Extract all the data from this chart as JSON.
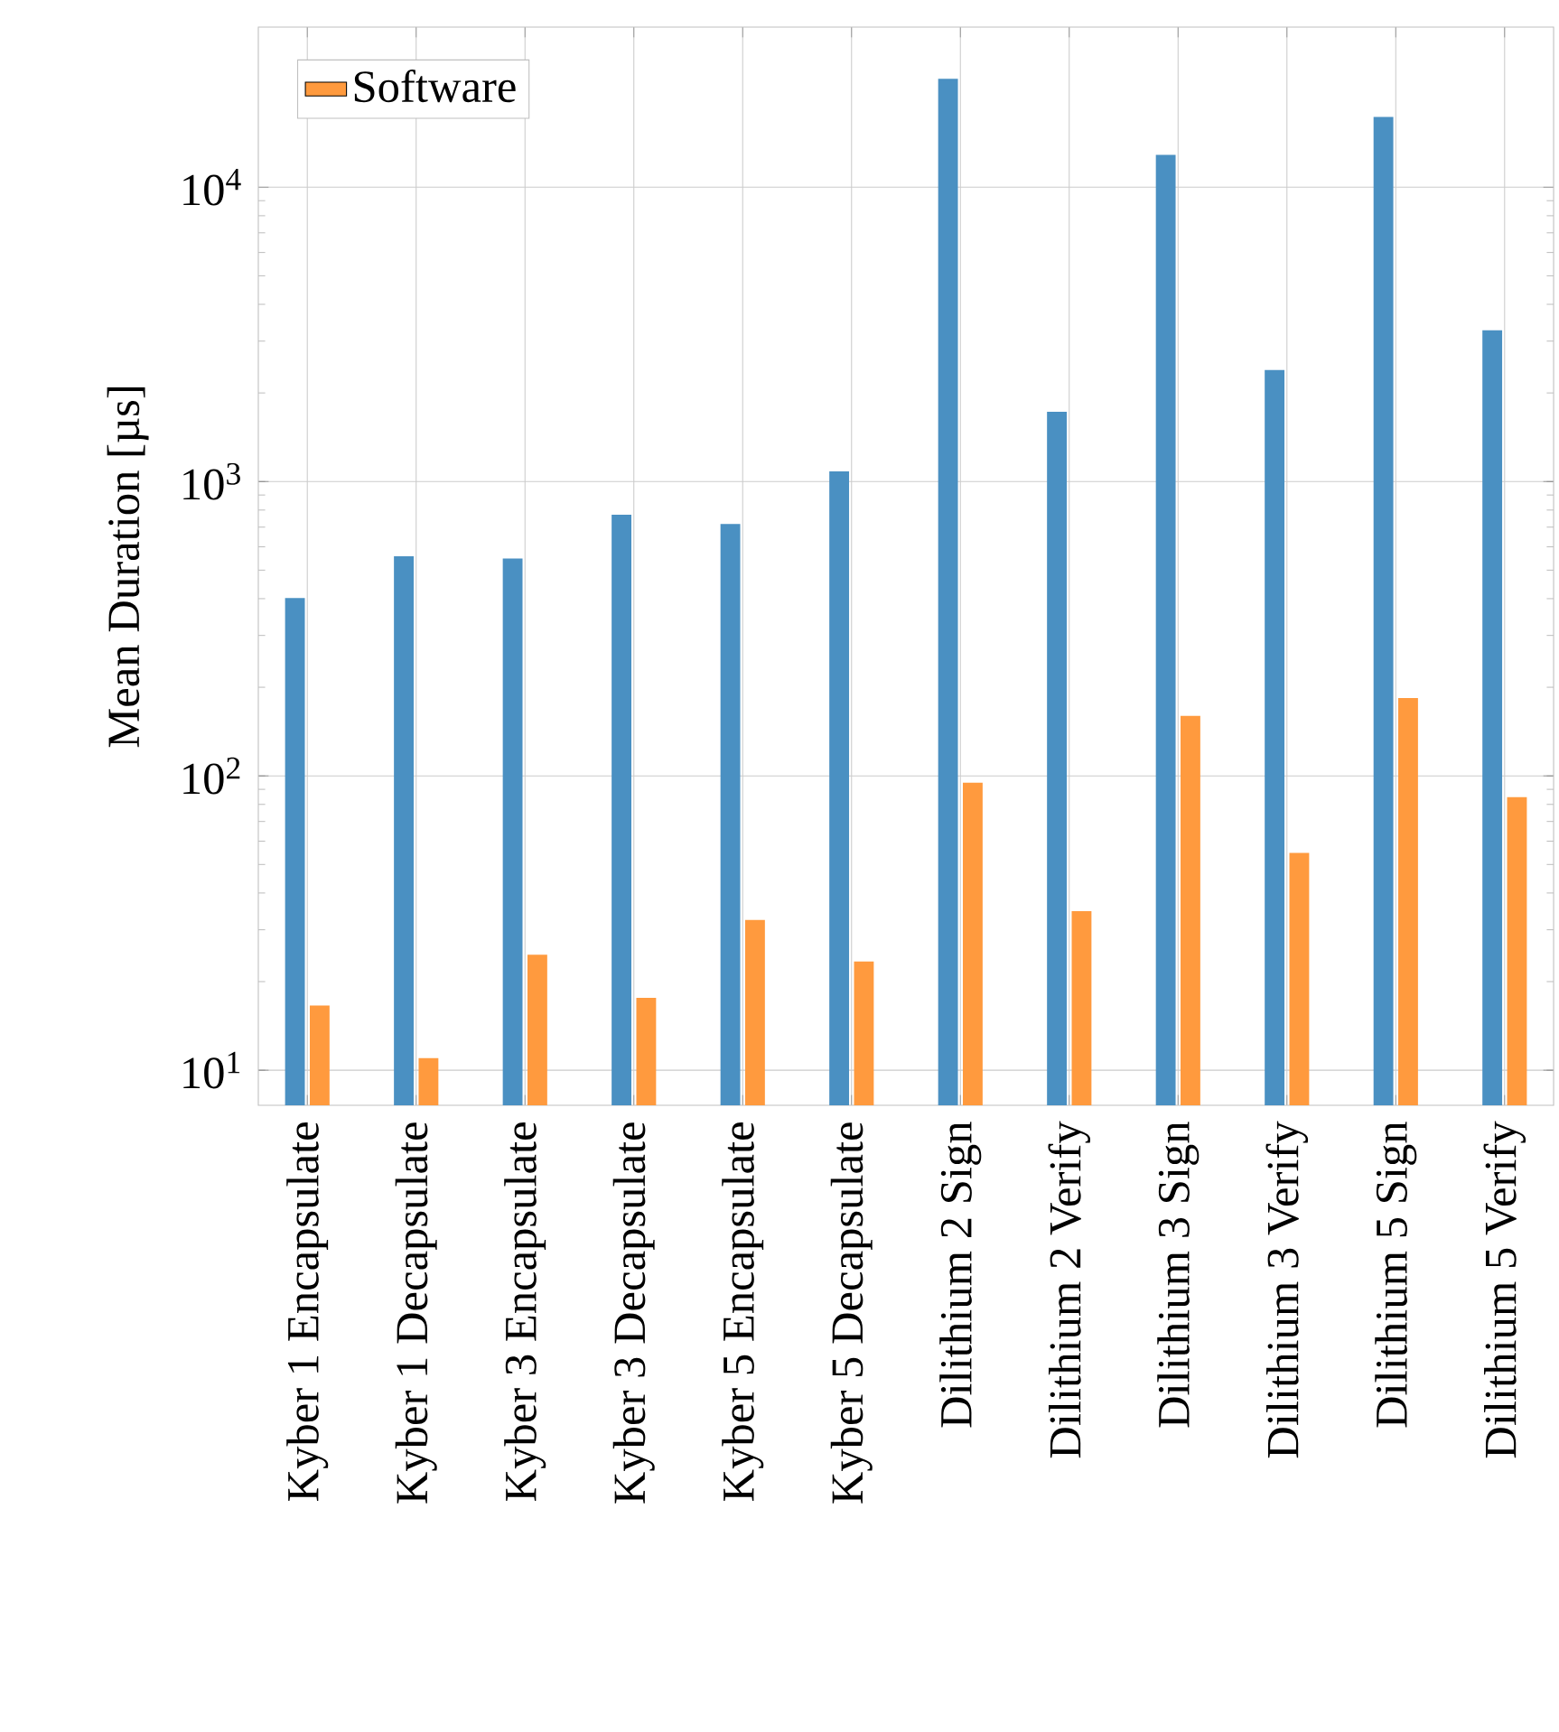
{
  "chart_data": {
    "type": "bar",
    "ylabel": "Mean Duration [µs]",
    "categories": [
      "Kyber 1 Encapsulate",
      "Kyber 1 Decapsulate",
      "Kyber 3 Encapsulate",
      "Kyber 3 Decapsulate",
      "Kyber 5 Encapsulate",
      "Kyber 5 Decapsulate",
      "Dilithium 2 Sign",
      "Dilithium 2 Verify",
      "Dilithium 3 Sign",
      "Dilithium 3 Verify",
      "Dilithium 5 Sign",
      "Dilithium 5 Verify"
    ],
    "series": [
      {
        "color": "#4a90c2",
        "values": [
          402,
          557,
          548,
          771,
          718,
          1082,
          23350,
          1727,
          12880,
          2393,
          17340,
          3265
        ]
      },
      {
        "name": "Software",
        "color": "#ff9a3e",
        "values": [
          16.6,
          11.0,
          24.7,
          17.6,
          32.4,
          23.4,
          94.8,
          34.7,
          160,
          54.7,
          184,
          84.7
        ]
      }
    ],
    "log": "y",
    "ylim": [
      7.6,
      35000
    ],
    "yticks": [
      {
        "value": 10,
        "label": "10$^{1}$"
      },
      {
        "value": 100,
        "label": "10$^{2}$"
      },
      {
        "value": 1000,
        "label": "10$^{3}$"
      },
      {
        "value": 10000,
        "label": "10$^{4}$"
      }
    ],
    "grid": true,
    "legend": "top left"
  }
}
